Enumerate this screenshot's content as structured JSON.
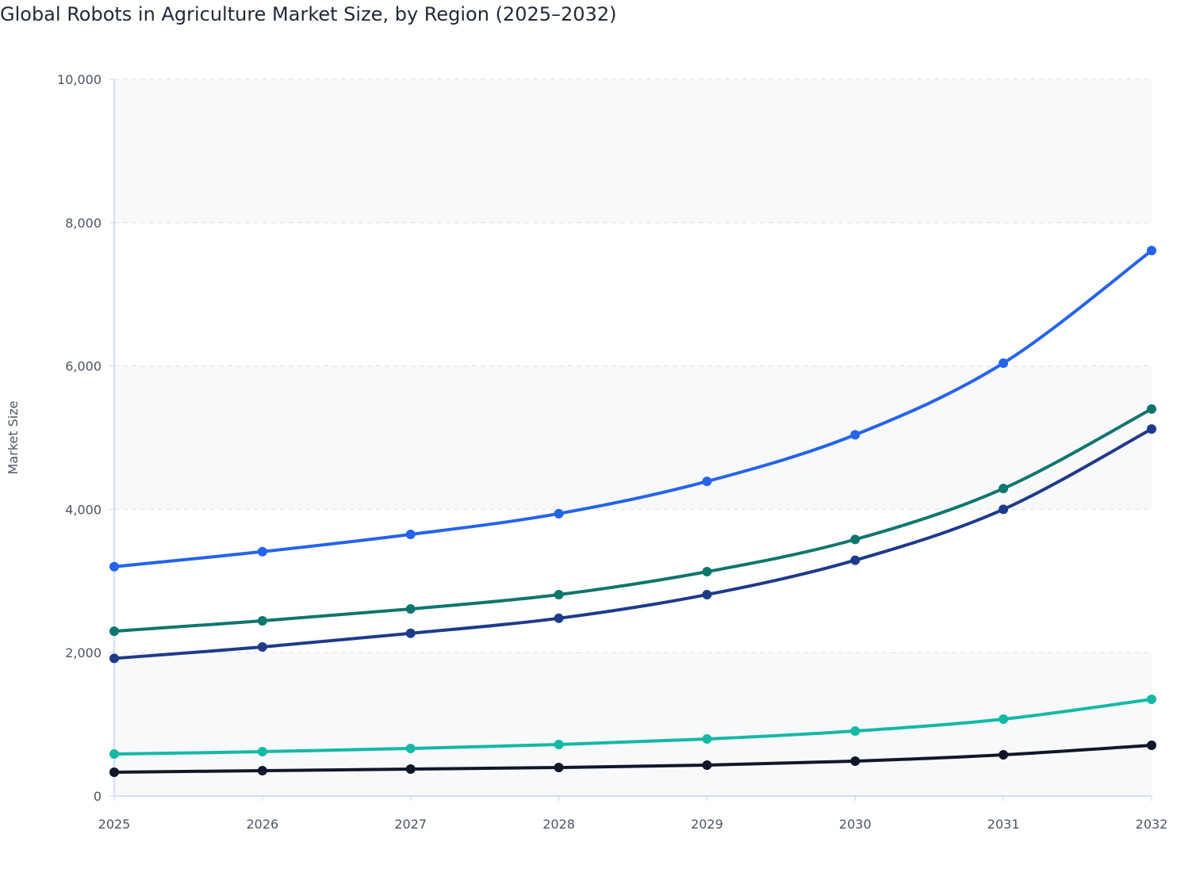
{
  "chart_data": {
    "type": "line",
    "title": "Global Robots in Agriculture Market Size, by Region (2025–2032)",
    "xlabel": "",
    "ylabel": "Market Size",
    "x": [
      "2025",
      "2026",
      "2027",
      "2028",
      "2029",
      "2030",
      "2031",
      "2032"
    ],
    "ylim": [
      0,
      10000
    ],
    "yticks": [
      0,
      2000,
      4000,
      6000,
      8000,
      10000
    ],
    "ytick_labels": [
      "0",
      "2,000",
      "4,000",
      "6,000",
      "8,000",
      "10,000"
    ],
    "grid": true,
    "legend": "none",
    "series": [
      {
        "color": "#2563eb",
        "values": [
          3200,
          3410,
          3650,
          3940,
          4390,
          5040,
          6040,
          7610
        ]
      },
      {
        "color": "#0f766e",
        "values": [
          2300,
          2445,
          2610,
          2810,
          3130,
          3580,
          4290,
          5400
        ]
      },
      {
        "color": "#1e3a8a",
        "values": [
          1920,
          2080,
          2270,
          2480,
          2810,
          3290,
          4000,
          5120
        ]
      },
      {
        "color": "#14b8a6",
        "values": [
          586,
          619,
          664,
          719,
          796,
          907,
          1073,
          1350
        ]
      },
      {
        "color": "#0f172a",
        "values": [
          332,
          354,
          376,
          398,
          431,
          487,
          575,
          708
        ]
      }
    ]
  }
}
